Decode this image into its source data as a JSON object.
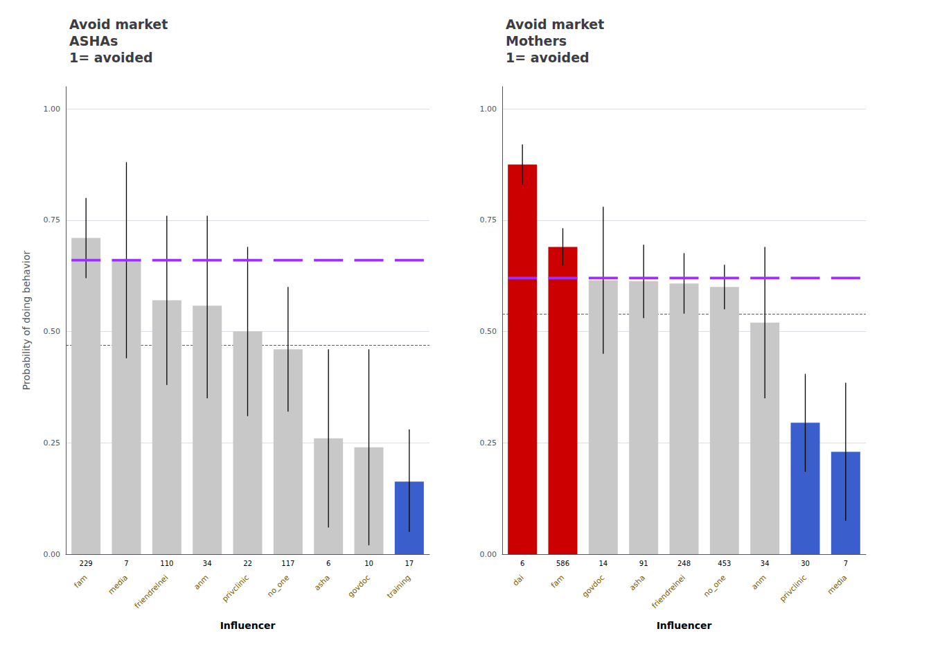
{
  "chart_data": [
    {
      "type": "bar",
      "title": "Avoid market\nASHAs\n1= avoided",
      "categories": [
        "fam",
        "media",
        "friendrelnei",
        "anm",
        "privclinic",
        "no_one",
        "asha",
        "govdoc",
        "training"
      ],
      "values": [
        0.71,
        0.66,
        0.57,
        0.558,
        0.5,
        0.46,
        0.26,
        0.24,
        0.163
      ],
      "error_low": [
        0.62,
        0.44,
        0.38,
        0.35,
        0.31,
        0.32,
        0.06,
        0.02,
        0.05
      ],
      "error_high": [
        0.8,
        0.88,
        0.76,
        0.76,
        0.69,
        0.6,
        0.46,
        0.46,
        0.28
      ],
      "counts": [
        229,
        7,
        110,
        34,
        22,
        117,
        6,
        10,
        17
      ],
      "colors": [
        "#c8c8c8",
        "#c8c8c8",
        "#c8c8c8",
        "#c8c8c8",
        "#c8c8c8",
        "#c8c8c8",
        "#c8c8c8",
        "#c8c8c8",
        "#3a5fcd"
      ],
      "mean_line": {
        "value": 0.66,
        "color": "#9b30ff"
      },
      "reference_line": {
        "value": 0.47,
        "color": "#444444",
        "line_style": "dashed"
      },
      "xlabel": "Influencer",
      "ylabel": "Probability of doing behavior",
      "ylim": [
        0.0,
        1.05
      ],
      "yticks": [
        {
          "value": 0,
          "label": "0.00"
        },
        0.25,
        {
          "value": 0.5,
          "label": "0.50"
        },
        0.75,
        {
          "value": 1,
          "label": "1.00"
        }
      ],
      "grid": true
    },
    {
      "type": "bar",
      "title": "Avoid market\nMothers\n1= avoided",
      "categories": [
        "dai",
        "fam",
        "govdoc",
        "asha",
        "friendrelnei",
        "no_one",
        "anm",
        "privclinic",
        "media"
      ],
      "values": [
        0.875,
        0.69,
        0.615,
        0.613,
        0.608,
        0.6,
        0.52,
        0.295,
        0.23
      ],
      "error_low": [
        0.83,
        0.648,
        0.45,
        0.53,
        0.54,
        0.55,
        0.35,
        0.185,
        0.075
      ],
      "error_high": [
        0.92,
        0.732,
        0.78,
        0.695,
        0.676,
        0.65,
        0.69,
        0.405,
        0.385
      ],
      "counts": [
        6,
        586,
        14,
        91,
        248,
        453,
        34,
        30,
        7
      ],
      "colors": [
        "#cc0000",
        "#cc0000",
        "#c8c8c8",
        "#c8c8c8",
        "#c8c8c8",
        "#c8c8c8",
        "#c8c8c8",
        "#3a5fcd",
        "#3a5fcd"
      ],
      "mean_line": {
        "value": 0.62,
        "color": "#9b30ff"
      },
      "reference_line": {
        "value": 0.54,
        "color": "#444444",
        "line_style": "dashed"
      },
      "xlabel": "Influencer",
      "ylim": [
        0.0,
        1.05
      ],
      "yticks": [
        {
          "value": 0,
          "label": "0.00"
        },
        0.25,
        {
          "value": 0.5,
          "label": "0.50"
        },
        0.75,
        {
          "value": 1,
          "label": "1.00"
        }
      ],
      "grid": true
    }
  ]
}
